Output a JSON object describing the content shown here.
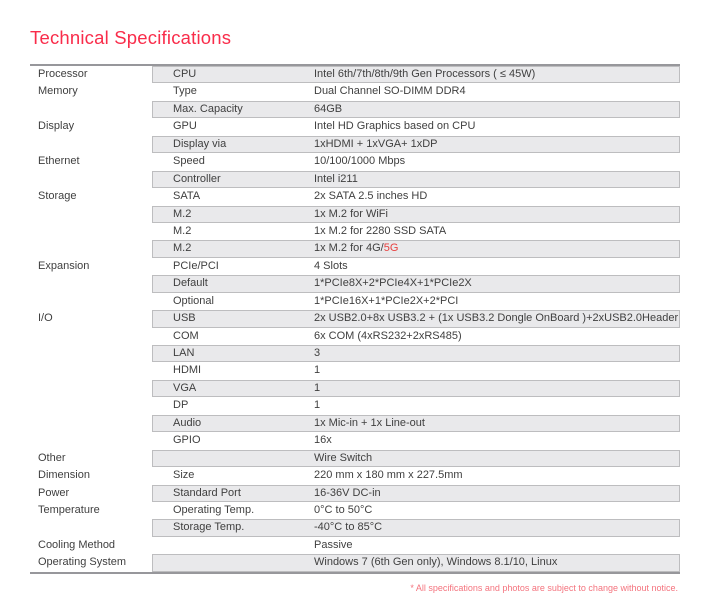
{
  "page": {
    "title": "Technical Specifications",
    "footnote": "* All specifications and photos are subject to change without notice."
  },
  "colors": {
    "title_red": "#f92c4a",
    "highlight_red": "#e8403f",
    "footnote_red": "#f4737e",
    "row_gray": "#e9e9eb",
    "row_border": "#bdbdbf",
    "table_border": "#97979b",
    "text": "#3f3f3f"
  },
  "table": {
    "rows": [
      {
        "category": "Processor",
        "label": "CPU",
        "value": "Intel 6th/7th/8th/9th Gen Processors ( ≤ 45W)"
      },
      {
        "category": "Memory",
        "label": "Type",
        "value": "Dual Channel SO-DIMM DDR4"
      },
      {
        "category": "",
        "label": "Max. Capacity",
        "value": "64GB"
      },
      {
        "category": "Display",
        "label": "GPU",
        "value": "Intel HD Graphics based on CPU"
      },
      {
        "category": "",
        "label": "Display via",
        "value": "1xHDMI + 1xVGA+ 1xDP"
      },
      {
        "category": "Ethernet",
        "label": "Speed",
        "value": "10/100/1000 Mbps"
      },
      {
        "category": "",
        "label": "Controller",
        "value": "Intel i211"
      },
      {
        "category": "Storage",
        "label": "SATA",
        "value": "2x SATA 2.5 inches HD"
      },
      {
        "category": "",
        "label": "M.2",
        "value": "1x M.2 for WiFi"
      },
      {
        "category": "",
        "label": "M.2",
        "value": "1x M.2 for 2280 SSD SATA"
      },
      {
        "category": "",
        "label": "M.2",
        "value": "1x M.2 for 4G/",
        "value_highlight": "5G"
      },
      {
        "category": "Expansion",
        "label": "PCIe/PCI",
        "value": "4 Slots"
      },
      {
        "category": "",
        "label": "Default",
        "value": "1*PCIe8X+2*PCIe4X+1*PCIe2X"
      },
      {
        "category": "",
        "label": "Optional",
        "value": "1*PCIe16X+1*PCIe2X+2*PCI"
      },
      {
        "category": "I/O",
        "label": "USB",
        "value": "2x USB2.0+8x USB3.2 + (1x USB3.2 Dongle OnBoard )+2xUSB2.0Header"
      },
      {
        "category": "",
        "label": "COM",
        "value": "6x COM (4xRS232+2xRS485)"
      },
      {
        "category": "",
        "label": "LAN",
        "value": "3"
      },
      {
        "category": "",
        "label": "HDMI",
        "value": "1"
      },
      {
        "category": "",
        "label": "VGA",
        "value": "1"
      },
      {
        "category": "",
        "label": "DP",
        "value": "1"
      },
      {
        "category": "",
        "label": "Audio",
        "value": "1x Mic-in + 1x Line-out"
      },
      {
        "category": "",
        "label": "GPIO",
        "value": "16x"
      },
      {
        "category": "Other",
        "label": "",
        "value": "Wire Switch"
      },
      {
        "category": "Dimension",
        "label": "Size",
        "value": "220 mm x 180 mm x 227.5mm"
      },
      {
        "category": "Power",
        "label": "Standard Port",
        "value": "16-36V DC-in"
      },
      {
        "category": "Temperature",
        "label": "Operating Temp.",
        "value": "0°C to 50°C"
      },
      {
        "category": "",
        "label": "Storage Temp.",
        "value": "-40°C to 85°C"
      },
      {
        "category": "Cooling Method",
        "label": "",
        "value": "Passive"
      },
      {
        "category": "Operating System",
        "label": "",
        "value": "Windows 7 (6th Gen only), Windows 8.1/10, Linux"
      }
    ]
  }
}
